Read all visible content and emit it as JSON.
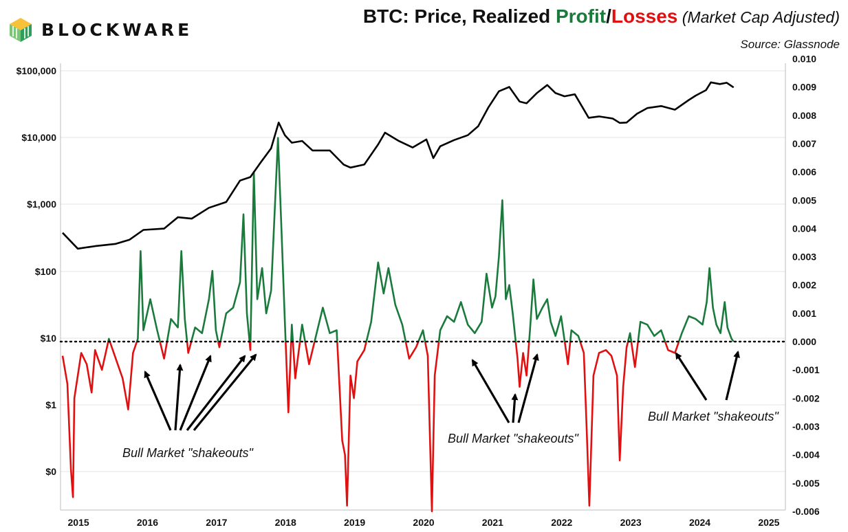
{
  "brand": {
    "name": "BLOCKWARE",
    "logo_icon": "blockware-cube-logo"
  },
  "title": {
    "prefix": "BTC: Price, Realized ",
    "profit": "Profit",
    "slash": "/",
    "losses": "Losses",
    "suffix": " (Market Cap Adjusted)"
  },
  "source": "Source: Glassnode",
  "colors": {
    "price": "#000000",
    "profit": "#1a7a3c",
    "loss": "#e01010",
    "grid": "#e3e3e3"
  },
  "annotations": [
    {
      "text": "Bull Market \"shakeouts\""
    },
    {
      "text": "Bull Market \"shakeouts\""
    },
    {
      "text": "Bull Market \"shakeouts\""
    }
  ],
  "chart_data": {
    "type": "line",
    "grid": true,
    "x_ticks": [
      "2015",
      "2016",
      "2017",
      "2018",
      "2019",
      "2020",
      "2021",
      "2022",
      "2023",
      "2024",
      "2025"
    ],
    "y_left": {
      "scale": "log",
      "tick_labels": [
        "$100,000",
        "$10,000",
        "$1,000",
        "$100",
        "$10",
        "$1",
        "$0"
      ]
    },
    "y_right": {
      "range": [
        -0.006,
        0.01
      ],
      "tick_labels": [
        "0.010",
        "0.009",
        "0.008",
        "0.007",
        "0.006",
        "0.005",
        "0.004",
        "0.003",
        "0.002",
        "0.001",
        "0.000",
        "-0.001",
        "-0.002",
        "-0.003",
        "-0.004",
        "-0.005",
        "-0.006"
      ]
    },
    "zero_line": "dotted",
    "series": [
      {
        "key": "price",
        "axis": "left",
        "points": [
          [
            2014.83,
            380
          ],
          [
            2015.05,
            220
          ],
          [
            2015.3,
            240
          ],
          [
            2015.6,
            260
          ],
          [
            2015.8,
            300
          ],
          [
            2016.0,
            420
          ],
          [
            2016.3,
            440
          ],
          [
            2016.5,
            650
          ],
          [
            2016.7,
            620
          ],
          [
            2016.95,
            900
          ],
          [
            2017.2,
            1100
          ],
          [
            2017.4,
            2300
          ],
          [
            2017.55,
            2600
          ],
          [
            2017.7,
            4300
          ],
          [
            2017.85,
            7000
          ],
          [
            2017.96,
            17000
          ],
          [
            2018.05,
            11000
          ],
          [
            2018.15,
            8500
          ],
          [
            2018.3,
            9000
          ],
          [
            2018.45,
            6500
          ],
          [
            2018.7,
            6500
          ],
          [
            2018.9,
            4000
          ],
          [
            2019.0,
            3600
          ],
          [
            2019.2,
            4000
          ],
          [
            2019.4,
            8000
          ],
          [
            2019.5,
            12000
          ],
          [
            2019.7,
            9000
          ],
          [
            2019.9,
            7200
          ],
          [
            2020.1,
            9500
          ],
          [
            2020.2,
            5000
          ],
          [
            2020.3,
            7500
          ],
          [
            2020.5,
            9300
          ],
          [
            2020.7,
            11000
          ],
          [
            2020.85,
            15000
          ],
          [
            2021.0,
            29000
          ],
          [
            2021.15,
            50000
          ],
          [
            2021.3,
            58000
          ],
          [
            2021.45,
            35000
          ],
          [
            2021.55,
            33000
          ],
          [
            2021.7,
            47000
          ],
          [
            2021.85,
            62000
          ],
          [
            2021.97,
            47000
          ],
          [
            2022.1,
            42000
          ],
          [
            2022.25,
            45000
          ],
          [
            2022.35,
            30000
          ],
          [
            2022.45,
            20000
          ],
          [
            2022.6,
            21000
          ],
          [
            2022.8,
            19500
          ],
          [
            2022.9,
            16800
          ],
          [
            2023.0,
            17000
          ],
          [
            2023.15,
            23000
          ],
          [
            2023.3,
            28000
          ],
          [
            2023.5,
            30000
          ],
          [
            2023.7,
            26500
          ],
          [
            2023.9,
            37000
          ],
          [
            2024.0,
            43000
          ],
          [
            2024.15,
            52000
          ],
          [
            2024.22,
            68000
          ],
          [
            2024.35,
            64000
          ],
          [
            2024.45,
            67000
          ],
          [
            2024.55,
            57000
          ]
        ]
      },
      {
        "key": "realized_profit_loss",
        "axis": "right",
        "points": [
          [
            2014.83,
            -0.0005
          ],
          [
            2014.9,
            -0.0015
          ],
          [
            2014.95,
            -0.0045
          ],
          [
            2014.98,
            -0.0055
          ],
          [
            2015.0,
            -0.002
          ],
          [
            2015.05,
            -0.0012
          ],
          [
            2015.1,
            -0.0004
          ],
          [
            2015.18,
            -0.0008
          ],
          [
            2015.25,
            -0.0018
          ],
          [
            2015.3,
            -0.0003
          ],
          [
            2015.4,
            -0.001
          ],
          [
            2015.5,
            0.0001
          ],
          [
            2015.6,
            -0.0006
          ],
          [
            2015.7,
            -0.0013
          ],
          [
            2015.78,
            -0.0024
          ],
          [
            2015.85,
            -0.0004
          ],
          [
            2015.92,
            0.0001
          ],
          [
            2015.96,
            0.0032
          ],
          [
            2016.0,
            0.0004
          ],
          [
            2016.1,
            0.0015
          ],
          [
            2016.2,
            0.0004
          ],
          [
            2016.3,
            -0.0006
          ],
          [
            2016.4,
            0.0008
          ],
          [
            2016.5,
            0.0005
          ],
          [
            2016.55,
            0.0032
          ],
          [
            2016.6,
            0.0008
          ],
          [
            2016.65,
            -0.0004
          ],
          [
            2016.75,
            0.0005
          ],
          [
            2016.85,
            0.0003
          ],
          [
            2016.95,
            0.0015
          ],
          [
            2017.0,
            0.0025
          ],
          [
            2017.05,
            0.0004
          ],
          [
            2017.1,
            -0.0002
          ],
          [
            2017.2,
            0.001
          ],
          [
            2017.3,
            0.0012
          ],
          [
            2017.4,
            0.0021
          ],
          [
            2017.45,
            0.0045
          ],
          [
            2017.5,
            0.001
          ],
          [
            2017.55,
            -0.0003
          ],
          [
            2017.6,
            0.006
          ],
          [
            2017.65,
            0.0015
          ],
          [
            2017.72,
            0.0026
          ],
          [
            2017.78,
            0.001
          ],
          [
            2017.85,
            0.0018
          ],
          [
            2017.9,
            0.0045
          ],
          [
            2017.95,
            0.0072
          ],
          [
            2018.0,
            0.004
          ],
          [
            2018.05,
            0.0007
          ],
          [
            2018.1,
            -0.0025
          ],
          [
            2018.15,
            0.0006
          ],
          [
            2018.2,
            -0.0013
          ],
          [
            2018.3,
            0.0006
          ],
          [
            2018.4,
            -0.0008
          ],
          [
            2018.5,
            0.0002
          ],
          [
            2018.6,
            0.0012
          ],
          [
            2018.7,
            0.0003
          ],
          [
            2018.8,
            0.0004
          ],
          [
            2018.88,
            -0.0035
          ],
          [
            2018.92,
            -0.004
          ],
          [
            2018.95,
            -0.0058
          ],
          [
            2019.0,
            -0.0012
          ],
          [
            2019.05,
            -0.002
          ],
          [
            2019.1,
            -0.0007
          ],
          [
            2019.2,
            -0.0003
          ],
          [
            2019.3,
            0.0007
          ],
          [
            2019.4,
            0.0028
          ],
          [
            2019.48,
            0.0017
          ],
          [
            2019.55,
            0.0026
          ],
          [
            2019.65,
            0.0013
          ],
          [
            2019.75,
            0.0006
          ],
          [
            2019.85,
            -0.0006
          ],
          [
            2019.95,
            -0.0002
          ],
          [
            2020.05,
            0.0004
          ],
          [
            2020.12,
            -0.0005
          ],
          [
            2020.18,
            -0.006
          ],
          [
            2020.22,
            -0.0012
          ],
          [
            2020.3,
            0.0004
          ],
          [
            2020.4,
            0.0009
          ],
          [
            2020.5,
            0.0007
          ],
          [
            2020.6,
            0.0014
          ],
          [
            2020.7,
            0.0006
          ],
          [
            2020.8,
            0.0003
          ],
          [
            2020.9,
            0.0007
          ],
          [
            2020.97,
            0.0024
          ],
          [
            2021.05,
            0.0012
          ],
          [
            2021.1,
            0.0016
          ],
          [
            2021.15,
            0.003
          ],
          [
            2021.2,
            0.005
          ],
          [
            2021.25,
            0.0015
          ],
          [
            2021.3,
            0.002
          ],
          [
            2021.35,
            0.001
          ],
          [
            2021.42,
            -0.0006
          ],
          [
            2021.45,
            -0.0016
          ],
          [
            2021.5,
            -0.0004
          ],
          [
            2021.55,
            -0.0012
          ],
          [
            2021.6,
            0.0004
          ],
          [
            2021.65,
            0.0022
          ],
          [
            2021.7,
            0.0008
          ],
          [
            2021.78,
            0.0012
          ],
          [
            2021.85,
            0.0015
          ],
          [
            2021.9,
            0.0007
          ],
          [
            2021.97,
            0.0002
          ],
          [
            2022.05,
            0.0009
          ],
          [
            2022.15,
            -0.0008
          ],
          [
            2022.2,
            0.0004
          ],
          [
            2022.3,
            0.0002
          ],
          [
            2022.38,
            -0.0004
          ],
          [
            2022.42,
            -0.003
          ],
          [
            2022.46,
            -0.0058
          ],
          [
            2022.52,
            -0.0012
          ],
          [
            2022.6,
            -0.0004
          ],
          [
            2022.7,
            -0.0003
          ],
          [
            2022.78,
            -0.0005
          ],
          [
            2022.86,
            -0.0012
          ],
          [
            2022.9,
            -0.0042
          ],
          [
            2022.95,
            -0.0016
          ],
          [
            2023.0,
            -0.0002
          ],
          [
            2023.05,
            0.0003
          ],
          [
            2023.12,
            -0.0009
          ],
          [
            2023.2,
            0.0007
          ],
          [
            2023.3,
            0.0006
          ],
          [
            2023.4,
            0.0002
          ],
          [
            2023.5,
            0.0004
          ],
          [
            2023.6,
            -0.0003
          ],
          [
            2023.7,
            -0.0004
          ],
          [
            2023.8,
            0.0003
          ],
          [
            2023.9,
            0.0009
          ],
          [
            2024.0,
            0.0008
          ],
          [
            2024.1,
            0.0006
          ],
          [
            2024.16,
            0.0014
          ],
          [
            2024.2,
            0.0026
          ],
          [
            2024.25,
            0.0012
          ],
          [
            2024.3,
            0.0006
          ],
          [
            2024.36,
            0.0003
          ],
          [
            2024.42,
            0.0014
          ],
          [
            2024.46,
            0.0005
          ],
          [
            2024.52,
            0.0001
          ],
          [
            2024.55,
            0.0
          ]
        ]
      }
    ]
  }
}
